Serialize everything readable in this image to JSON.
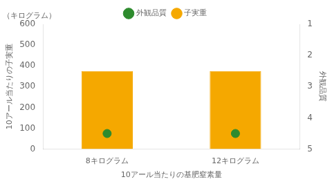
{
  "chart_data": {
    "type": "bar",
    "categories": [
      "8キログラム",
      "12キログラム"
    ],
    "xlabel": "10アール当たりの基肥窒素量",
    "ylabel": "10アール当たりの子実重",
    "y2label": "外観品質",
    "annotations": [
      "（キログラム）"
    ],
    "series": [
      {
        "name": "子実重",
        "type": "bar",
        "color": "#F5A800",
        "values": [
          375,
          375
        ]
      },
      {
        "name": "外観品質",
        "type": "scatter",
        "color": "#2E8B2E",
        "marker": "circle",
        "axis": "y2",
        "values": [
          4.5,
          4.5
        ]
      }
    ],
    "ylim": [
      0,
      600
    ],
    "yticks": [
      0,
      100,
      200,
      300,
      400,
      500,
      600
    ],
    "y2lim": [
      5,
      1
    ],
    "y2ticks": [
      1,
      2,
      3,
      4,
      5
    ],
    "grid": false,
    "legend": "top"
  }
}
